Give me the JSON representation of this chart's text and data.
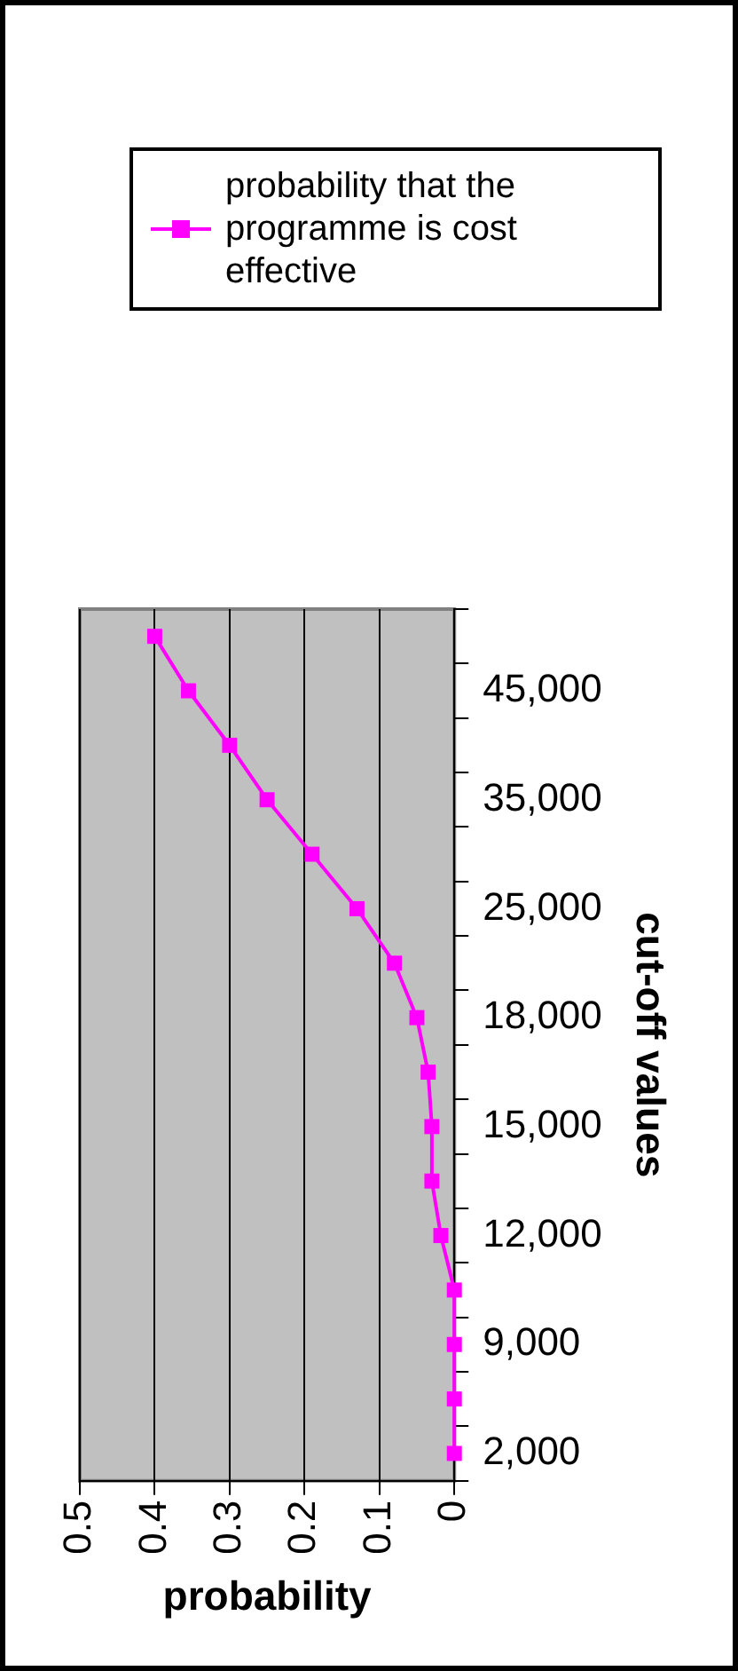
{
  "chart_data": {
    "type": "line",
    "orientation": "horizontal",
    "xlabel": "probability",
    "ylabel": "cut-off values",
    "categories": [
      null,
      "45,000",
      null,
      "35,000",
      null,
      "25,000",
      null,
      "18,000",
      null,
      "15,000",
      null,
      "12,000",
      null,
      "9,000",
      null,
      "2,000"
    ],
    "series": [
      {
        "name": "probability that the programme is cost effective",
        "color": "#ff00ff",
        "values": [
          0.4,
          0.355,
          0.3,
          0.25,
          0.19,
          0.13,
          0.08,
          0.05,
          0.035,
          0.03,
          0.03,
          0.018,
          0,
          0,
          0,
          0
        ]
      }
    ],
    "xlim": [
      0.5,
      0
    ],
    "xticks": [
      0.5,
      0.4,
      0.3,
      0.2,
      0.1,
      0
    ],
    "grid": "x",
    "legend": "top",
    "marker": "square",
    "line_style": "solid"
  }
}
